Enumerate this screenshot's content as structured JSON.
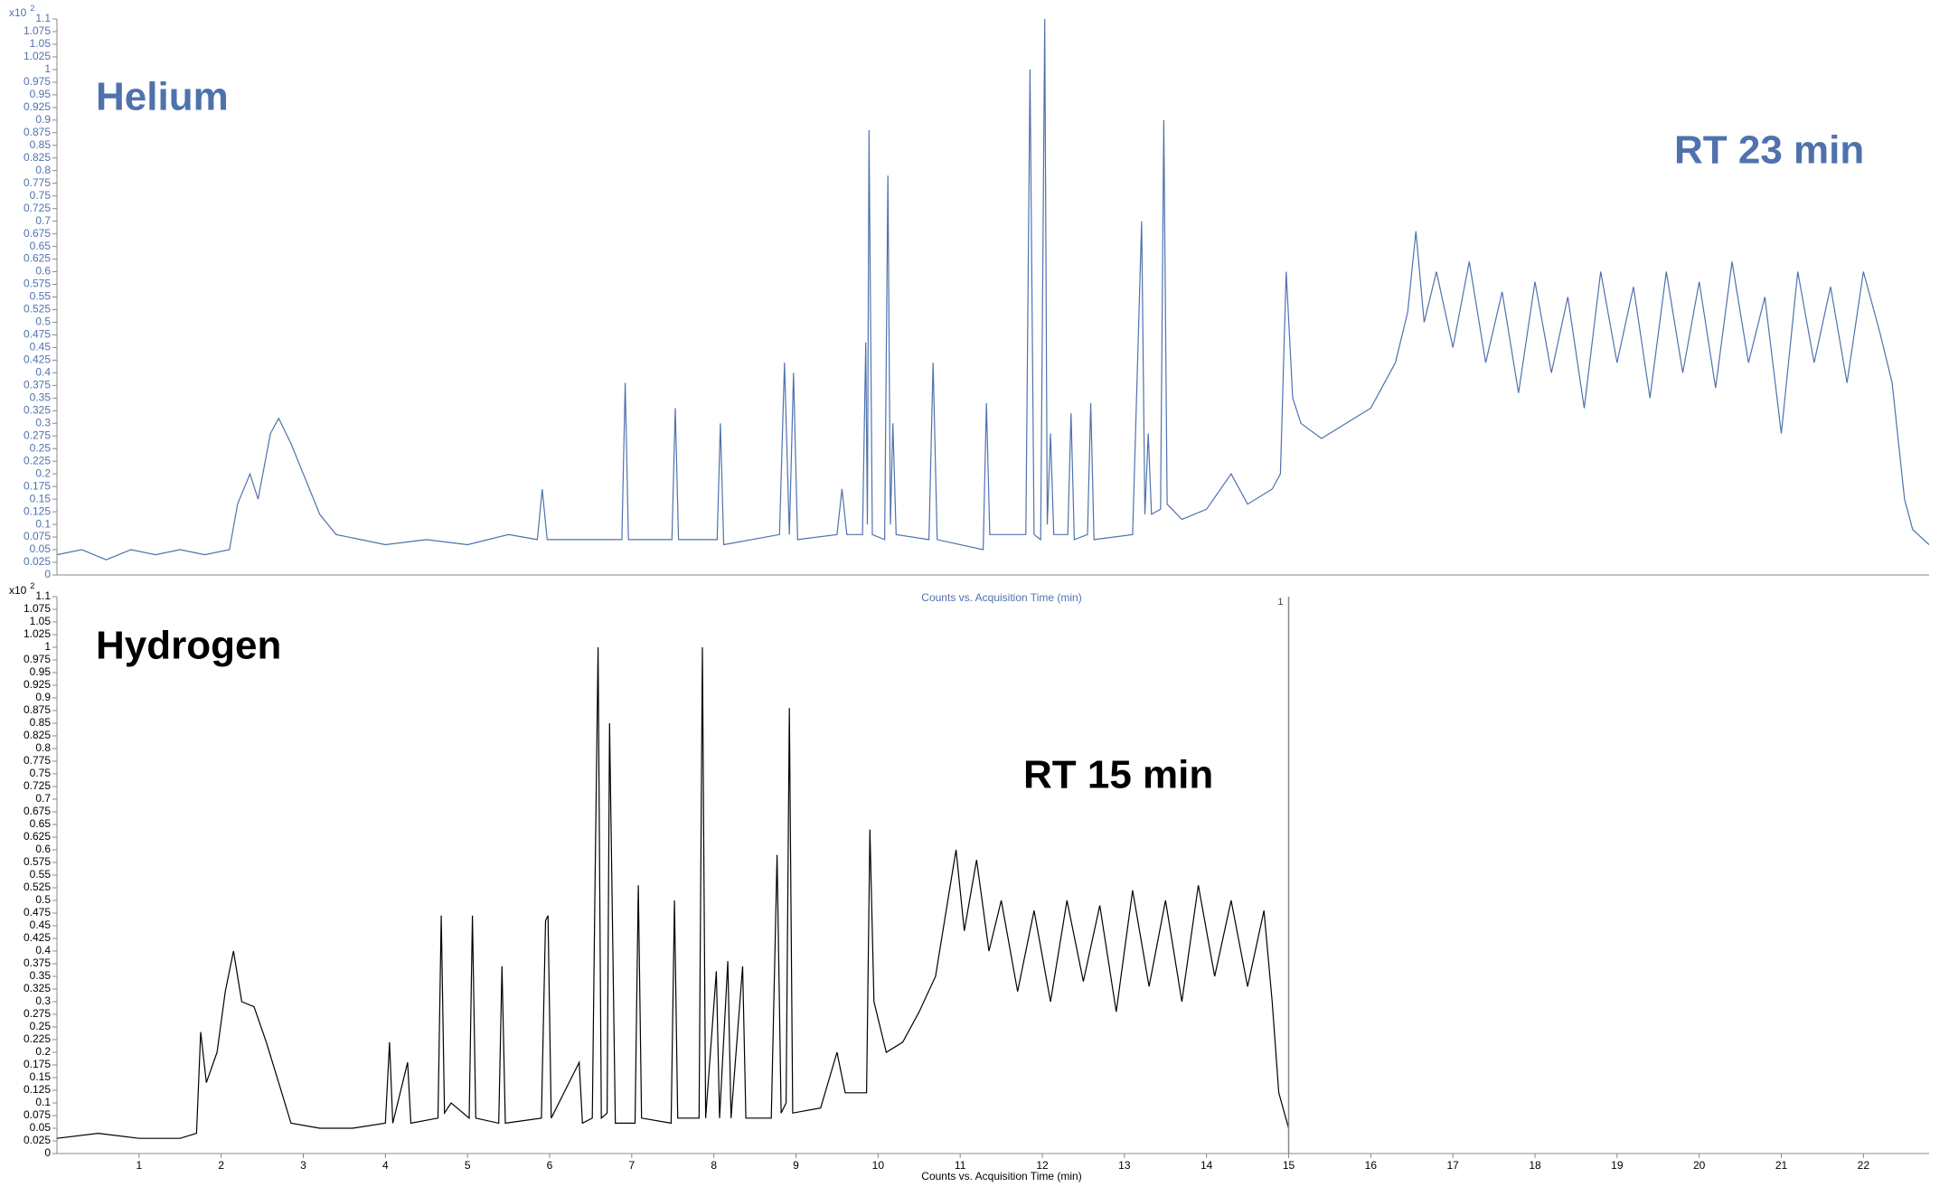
{
  "chart_data": [
    {
      "type": "line",
      "label": "Helium",
      "rt_label": "RT 23 min",
      "x_axis_label": "Counts vs. Acquisition Time (min)",
      "y_scale_label": {
        "base": "x10",
        "exponent": "2"
      },
      "color": "#4f72ad",
      "xlim": [
        0,
        22.8
      ],
      "ylim": [
        0,
        1.1
      ],
      "yticks": [
        0,
        0.025,
        0.05,
        0.075,
        0.1,
        0.125,
        0.15,
        0.175,
        0.2,
        0.225,
        0.25,
        0.275,
        0.3,
        0.325,
        0.35,
        0.375,
        0.4,
        0.425,
        0.45,
        0.475,
        0.5,
        0.525,
        0.55,
        0.575,
        0.6,
        0.625,
        0.65,
        0.675,
        0.7,
        0.725,
        0.75,
        0.775,
        0.8,
        0.825,
        0.85,
        0.875,
        0.9,
        0.925,
        0.95,
        0.975,
        1,
        1.025,
        1.05,
        1.075,
        1.1
      ],
      "x": [
        0,
        0.3,
        0.6,
        0.9,
        1.2,
        1.5,
        1.8,
        2.1,
        2.2,
        2.35,
        2.45,
        2.6,
        2.7,
        2.85,
        3.0,
        3.2,
        3.4,
        3.7,
        4.0,
        4.5,
        5.0,
        5.5,
        5.85,
        5.91,
        5.97,
        6.5,
        6.88,
        6.92,
        6.96,
        7.49,
        7.53,
        7.57,
        8.04,
        8.08,
        8.12,
        8.8,
        8.86,
        8.92,
        8.97,
        9.02,
        9.5,
        9.56,
        9.62,
        9.81,
        9.85,
        9.87,
        9.89,
        9.93,
        10.08,
        10.12,
        10.15,
        10.18,
        10.22,
        10.62,
        10.67,
        10.72,
        11.28,
        11.32,
        11.36,
        11.8,
        11.85,
        11.9,
        11.98,
        12.03,
        12.06,
        12.1,
        12.14,
        12.31,
        12.35,
        12.39,
        12.55,
        12.59,
        12.63,
        13.1,
        13.21,
        13.25,
        13.29,
        13.33,
        13.44,
        13.48,
        13.52,
        13.7,
        14.0,
        14.3,
        14.5,
        14.8,
        14.9,
        14.97,
        15.05,
        15.15,
        15.4,
        15.7,
        16.0,
        16.3,
        16.45,
        16.55,
        16.65,
        16.8,
        17.0,
        17.2,
        17.4,
        17.6,
        17.8,
        18.0,
        18.2,
        18.4,
        18.6,
        18.8,
        19.0,
        19.2,
        19.4,
        19.6,
        19.8,
        20.0,
        20.2,
        20.4,
        20.6,
        20.8,
        21.0,
        21.2,
        21.4,
        21.6,
        21.8,
        22.0,
        22.2,
        22.35,
        22.5,
        22.6,
        22.8
      ],
      "values": [
        0.04,
        0.05,
        0.03,
        0.05,
        0.04,
        0.05,
        0.04,
        0.05,
        0.14,
        0.2,
        0.15,
        0.28,
        0.31,
        0.26,
        0.2,
        0.12,
        0.08,
        0.07,
        0.06,
        0.07,
        0.06,
        0.08,
        0.07,
        0.17,
        0.07,
        0.07,
        0.07,
        0.38,
        0.07,
        0.07,
        0.33,
        0.07,
        0.07,
        0.3,
        0.06,
        0.08,
        0.42,
        0.08,
        0.4,
        0.07,
        0.08,
        0.17,
        0.08,
        0.08,
        0.46,
        0.1,
        0.88,
        0.08,
        0.07,
        0.79,
        0.1,
        0.3,
        0.08,
        0.07,
        0.42,
        0.07,
        0.05,
        0.34,
        0.08,
        0.08,
        1.0,
        0.08,
        0.07,
        1.1,
        0.1,
        0.28,
        0.08,
        0.08,
        0.32,
        0.07,
        0.08,
        0.34,
        0.07,
        0.08,
        0.7,
        0.12,
        0.28,
        0.12,
        0.13,
        0.9,
        0.14,
        0.11,
        0.13,
        0.2,
        0.14,
        0.17,
        0.2,
        0.6,
        0.35,
        0.3,
        0.27,
        0.3,
        0.33,
        0.42,
        0.52,
        0.68,
        0.5,
        0.6,
        0.45,
        0.62,
        0.42,
        0.56,
        0.36,
        0.58,
        0.4,
        0.55,
        0.33,
        0.6,
        0.42,
        0.57,
        0.35,
        0.6,
        0.4,
        0.58,
        0.37,
        0.62,
        0.42,
        0.55,
        0.28,
        0.6,
        0.42,
        0.57,
        0.38,
        0.6,
        0.48,
        0.38,
        0.15,
        0.09,
        0.06
      ]
    },
    {
      "type": "line",
      "label": "Hydrogen",
      "rt_label": "RT 15 min",
      "x_axis_label": "Counts vs. Acquisition Time (min)",
      "y_scale_label": {
        "base": "x10",
        "exponent": "2"
      },
      "color": "#000000",
      "xlim": [
        0,
        22.8
      ],
      "ylim": [
        0,
        1.1
      ],
      "xticks": [
        1,
        2,
        3,
        4,
        5,
        6,
        7,
        8,
        9,
        10,
        11,
        12,
        13,
        14,
        15,
        16,
        17,
        18,
        19,
        20,
        21,
        22
      ],
      "yticks": [
        0,
        0.025,
        0.05,
        0.075,
        0.1,
        0.125,
        0.15,
        0.175,
        0.2,
        0.225,
        0.25,
        0.275,
        0.3,
        0.325,
        0.35,
        0.375,
        0.4,
        0.425,
        0.45,
        0.475,
        0.5,
        0.525,
        0.55,
        0.575,
        0.6,
        0.625,
        0.65,
        0.675,
        0.7,
        0.725,
        0.75,
        0.775,
        0.8,
        0.825,
        0.85,
        0.875,
        0.9,
        0.925,
        0.95,
        0.975,
        1,
        1.025,
        1.05,
        1.075,
        1.1
      ],
      "marker": {
        "x": 15,
        "label": "1"
      },
      "x": [
        0,
        0.5,
        1.0,
        1.5,
        1.7,
        1.75,
        1.82,
        1.95,
        2.05,
        2.15,
        2.25,
        2.4,
        2.55,
        2.7,
        2.85,
        3.2,
        3.6,
        4.0,
        4.05,
        4.09,
        4.27,
        4.31,
        4.64,
        4.68,
        4.72,
        4.8,
        5.02,
        5.06,
        5.1,
        5.38,
        5.42,
        5.46,
        5.9,
        5.95,
        5.98,
        6.02,
        6.36,
        6.4,
        6.52,
        6.55,
        6.59,
        6.63,
        6.7,
        6.73,
        6.76,
        6.8,
        7.04,
        7.08,
        7.12,
        7.48,
        7.52,
        7.56,
        7.82,
        7.86,
        7.9,
        8.03,
        8.07,
        8.17,
        8.21,
        8.35,
        8.39,
        8.7,
        8.77,
        8.82,
        8.88,
        8.92,
        8.96,
        9.3,
        9.5,
        9.6,
        9.86,
        9.9,
        9.95,
        10.1,
        10.3,
        10.5,
        10.7,
        10.85,
        10.95,
        11.05,
        11.2,
        11.35,
        11.5,
        11.7,
        11.9,
        12.1,
        12.3,
        12.5,
        12.7,
        12.9,
        13.1,
        13.3,
        13.5,
        13.7,
        13.9,
        14.1,
        14.3,
        14.5,
        14.7,
        14.8,
        14.88,
        15.0
      ],
      "values": [
        0.03,
        0.04,
        0.03,
        0.03,
        0.04,
        0.24,
        0.14,
        0.2,
        0.32,
        0.4,
        0.3,
        0.29,
        0.22,
        0.14,
        0.06,
        0.05,
        0.05,
        0.06,
        0.22,
        0.06,
        0.18,
        0.06,
        0.07,
        0.47,
        0.08,
        0.1,
        0.07,
        0.47,
        0.07,
        0.06,
        0.37,
        0.06,
        0.07,
        0.46,
        0.47,
        0.07,
        0.18,
        0.06,
        0.07,
        0.5,
        1.0,
        0.07,
        0.08,
        0.85,
        0.52,
        0.06,
        0.06,
        0.53,
        0.07,
        0.06,
        0.5,
        0.07,
        0.07,
        1.0,
        0.07,
        0.36,
        0.07,
        0.38,
        0.07,
        0.37,
        0.07,
        0.07,
        0.59,
        0.08,
        0.1,
        0.88,
        0.08,
        0.09,
        0.2,
        0.12,
        0.12,
        0.64,
        0.3,
        0.2,
        0.22,
        0.28,
        0.35,
        0.5,
        0.6,
        0.44,
        0.58,
        0.4,
        0.5,
        0.32,
        0.48,
        0.3,
        0.5,
        0.34,
        0.49,
        0.28,
        0.52,
        0.33,
        0.5,
        0.3,
        0.53,
        0.35,
        0.5,
        0.33,
        0.48,
        0.3,
        0.12,
        0.05
      ]
    }
  ]
}
